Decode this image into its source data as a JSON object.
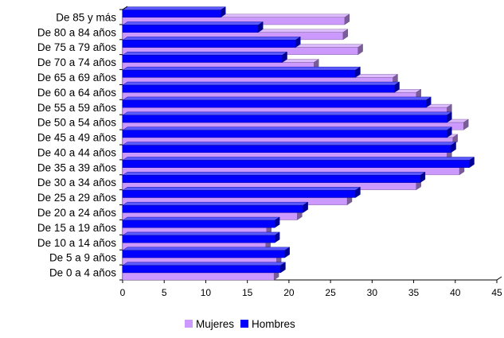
{
  "chart_data": {
    "type": "bar",
    "orientation": "horizontal",
    "categories": [
      "De 85 y más",
      "De 80 a 84 años",
      "De 75 a 79 años",
      "De 70 a 74 años",
      "De 65 a 69 años",
      "De 60 a 64 años",
      "De 55 a 59 años",
      "De 50 a 54 años",
      "De 45 a 49 años",
      "De 40 a 44 años",
      "De 35 a 39 años",
      "De 30 a 34 años",
      "De 25 a 29 años",
      "De 20 a 24 años",
      "De 15 a 19 años",
      "De 10 a 14 años",
      "De 5 a 9 años",
      "De 0 a 4 años"
    ],
    "series": [
      {
        "name": "Mujeres",
        "color": "#CC99FF",
        "values": [
          26.7,
          26.5,
          28.3,
          23.0,
          32.5,
          35.3,
          39.0,
          41.0,
          39.7,
          39.0,
          40.5,
          35.3,
          27.0,
          21.0,
          17.3,
          17.2,
          18.5,
          18.2
        ]
      },
      {
        "name": "Hombres",
        "color": "#0000FF",
        "values": [
          11.8,
          16.3,
          20.8,
          19.2,
          28.0,
          32.7,
          36.5,
          39.0,
          39.0,
          39.5,
          41.7,
          35.8,
          28.0,
          21.7,
          18.3,
          18.3,
          19.5,
          19.0
        ]
      }
    ],
    "xlim": [
      0,
      45
    ],
    "xticks": [
      "0",
      "5",
      "10",
      "15",
      "20",
      "25",
      "30",
      "35",
      "40",
      "45"
    ],
    "grid": false,
    "legend": "bottom"
  }
}
